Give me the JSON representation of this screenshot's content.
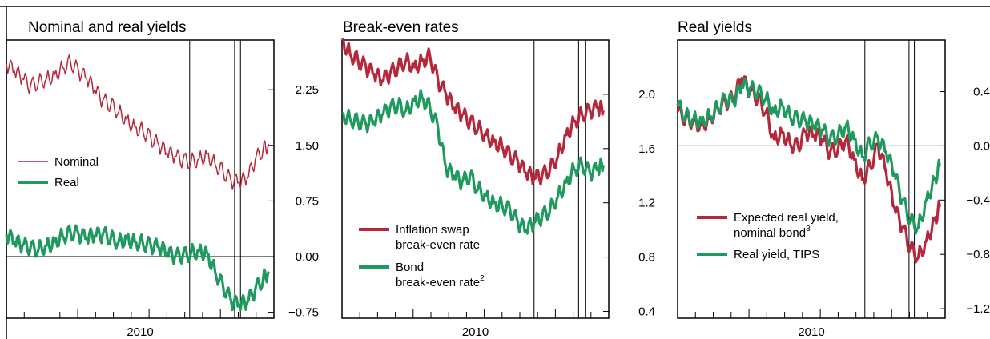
{
  "chart_data": [
    {
      "type": "line",
      "title": "Nominal and real yields",
      "xlabel": "2010",
      "y_ticks": [
        "2.25",
        "1.50",
        "0.75",
        "0.00",
        "−0.75"
      ],
      "y_tick_values": [
        2.25,
        1.5,
        0.75,
        0.0,
        -0.75
      ],
      "ylim": [
        -0.83,
        2.92
      ],
      "xlim": [
        0,
        1
      ],
      "event_lines_x": [
        0.685,
        0.853,
        0.875
      ],
      "x_minor_ticks": 14,
      "legend": [
        "Nominal",
        "Real"
      ],
      "series": [
        {
          "name": "Nominal",
          "color": "#b5273a",
          "x": [
            0,
            0.03,
            0.06,
            0.09,
            0.12,
            0.15,
            0.18,
            0.21,
            0.24,
            0.27,
            0.3,
            0.33,
            0.36,
            0.39,
            0.42,
            0.45,
            0.48,
            0.51,
            0.54,
            0.57,
            0.6,
            0.63,
            0.66,
            0.69,
            0.72,
            0.75,
            0.78,
            0.81,
            0.84,
            0.87,
            0.9,
            0.93,
            0.96,
            0.98
          ],
          "values": [
            2.6,
            2.5,
            2.4,
            2.3,
            2.35,
            2.4,
            2.45,
            2.55,
            2.62,
            2.5,
            2.4,
            2.25,
            2.1,
            2.05,
            1.95,
            1.85,
            1.75,
            1.7,
            1.6,
            1.5,
            1.4,
            1.35,
            1.3,
            1.28,
            1.32,
            1.38,
            1.25,
            1.15,
            1.02,
            1.0,
            1.05,
            1.3,
            1.45,
            1.52
          ]
        },
        {
          "name": "Real",
          "color": "#1e9a5e",
          "x": [
            0,
            0.03,
            0.06,
            0.09,
            0.12,
            0.15,
            0.18,
            0.21,
            0.24,
            0.27,
            0.3,
            0.33,
            0.36,
            0.39,
            0.42,
            0.45,
            0.48,
            0.51,
            0.54,
            0.57,
            0.6,
            0.63,
            0.66,
            0.69,
            0.72,
            0.75,
            0.78,
            0.81,
            0.84,
            0.87,
            0.9,
            0.93,
            0.96,
            0.98
          ],
          "values": [
            0.3,
            0.2,
            0.15,
            0.12,
            0.1,
            0.15,
            0.2,
            0.28,
            0.32,
            0.3,
            0.25,
            0.28,
            0.3,
            0.25,
            0.2,
            0.25,
            0.2,
            0.18,
            0.15,
            0.12,
            0.05,
            0.0,
            0.02,
            0.05,
            0.08,
            0.05,
            -0.2,
            -0.4,
            -0.6,
            -0.65,
            -0.62,
            -0.45,
            -0.3,
            -0.2
          ]
        }
      ]
    },
    {
      "type": "line",
      "title": "Break-even rates",
      "xlabel": "2010",
      "y_ticks": [
        "2.0",
        "1.6",
        "1.2",
        "0.8",
        "0.4"
      ],
      "y_tick_values": [
        2.0,
        1.6,
        1.2,
        0.8,
        0.4
      ],
      "ylim": [
        0.35,
        2.4
      ],
      "xlim": [
        0,
        1
      ],
      "event_lines_x": [
        0.72,
        0.887,
        0.912
      ],
      "x_minor_ticks": 14,
      "legend": [
        "Inflation swap break-even rate",
        "Bond break-even rate"
      ],
      "series": [
        {
          "name": "Inflation swap break-even rate",
          "color": "#b5273a",
          "x": [
            0,
            0.03,
            0.06,
            0.09,
            0.12,
            0.15,
            0.18,
            0.21,
            0.24,
            0.27,
            0.3,
            0.33,
            0.36,
            0.39,
            0.42,
            0.45,
            0.48,
            0.51,
            0.54,
            0.57,
            0.6,
            0.63,
            0.66,
            0.69,
            0.72,
            0.75,
            0.78,
            0.81,
            0.84,
            0.87,
            0.9,
            0.93,
            0.96,
            0.98
          ],
          "values": [
            2.4,
            2.3,
            2.25,
            2.2,
            2.15,
            2.1,
            2.15,
            2.2,
            2.25,
            2.2,
            2.25,
            2.28,
            2.1,
            2.0,
            1.9,
            1.85,
            1.8,
            1.75,
            1.7,
            1.65,
            1.62,
            1.55,
            1.5,
            1.42,
            1.38,
            1.4,
            1.45,
            1.55,
            1.7,
            1.8,
            1.85,
            1.88,
            1.9,
            1.88
          ]
        },
        {
          "name": "Bond break-even rate",
          "color": "#1e9a5e",
          "x": [
            0,
            0.03,
            0.06,
            0.09,
            0.12,
            0.15,
            0.18,
            0.21,
            0.24,
            0.27,
            0.3,
            0.33,
            0.36,
            0.39,
            0.42,
            0.45,
            0.48,
            0.51,
            0.54,
            0.57,
            0.6,
            0.63,
            0.66,
            0.69,
            0.72,
            0.75,
            0.78,
            0.81,
            0.84,
            0.87,
            0.9,
            0.93,
            0.96,
            0.98
          ],
          "values": [
            1.85,
            1.82,
            1.8,
            1.78,
            1.8,
            1.85,
            1.9,
            1.92,
            1.88,
            1.95,
            1.98,
            1.9,
            1.75,
            1.45,
            1.4,
            1.35,
            1.4,
            1.3,
            1.25,
            1.2,
            1.18,
            1.15,
            1.05,
            1.0,
            1.05,
            1.1,
            1.15,
            1.25,
            1.35,
            1.45,
            1.48,
            1.42,
            1.45,
            1.48
          ]
        }
      ]
    },
    {
      "type": "line",
      "title": "Real yields",
      "xlabel": "2010",
      "y_ticks": [
        "0.4",
        "0.0",
        "−0.4",
        "−0.8",
        "−1.2"
      ],
      "y_tick_values": [
        0.4,
        0.0,
        -0.4,
        -0.8,
        -1.2
      ],
      "ylim": [
        -1.27,
        0.78
      ],
      "xlim": [
        0,
        1
      ],
      "event_lines_x": [
        0.7,
        0.865,
        0.885
      ],
      "x_minor_ticks": 14,
      "legend": [
        "Expected real yield, nominal bond",
        "Real yield, TIPS"
      ],
      "series": [
        {
          "name": "Expected real yield, nominal bond",
          "color": "#b5273a",
          "x": [
            0,
            0.03,
            0.06,
            0.09,
            0.12,
            0.15,
            0.18,
            0.21,
            0.24,
            0.27,
            0.3,
            0.33,
            0.36,
            0.39,
            0.42,
            0.45,
            0.48,
            0.51,
            0.54,
            0.57,
            0.6,
            0.63,
            0.66,
            0.69,
            0.72,
            0.75,
            0.78,
            0.81,
            0.84,
            0.87,
            0.9,
            0.93,
            0.96,
            0.98
          ],
          "values": [
            0.25,
            0.2,
            0.18,
            0.15,
            0.2,
            0.28,
            0.32,
            0.35,
            0.5,
            0.4,
            0.35,
            0.25,
            0.05,
            0.1,
            0.02,
            0.0,
            0.1,
            0.08,
            0.05,
            -0.05,
            -0.02,
            0.05,
            -0.1,
            -0.25,
            -0.15,
            0.0,
            -0.2,
            -0.45,
            -0.6,
            -0.75,
            -0.82,
            -0.7,
            -0.55,
            -0.45
          ]
        },
        {
          "name": "Real yield, TIPS",
          "color": "#1e9a5e",
          "x": [
            0,
            0.03,
            0.06,
            0.09,
            0.12,
            0.15,
            0.18,
            0.21,
            0.24,
            0.27,
            0.3,
            0.33,
            0.36,
            0.39,
            0.42,
            0.45,
            0.48,
            0.51,
            0.54,
            0.57,
            0.6,
            0.63,
            0.66,
            0.69,
            0.72,
            0.75,
            0.78,
            0.81,
            0.84,
            0.87,
            0.9,
            0.93,
            0.96,
            0.98
          ],
          "values": [
            0.3,
            0.22,
            0.2,
            0.18,
            0.22,
            0.28,
            0.35,
            0.32,
            0.45,
            0.42,
            0.4,
            0.35,
            0.25,
            0.3,
            0.22,
            0.2,
            0.18,
            0.15,
            0.12,
            0.05,
            0.08,
            0.15,
            0.05,
            -0.08,
            0.02,
            0.05,
            -0.05,
            -0.2,
            -0.4,
            -0.55,
            -0.6,
            -0.4,
            -0.25,
            -0.15
          ]
        }
      ]
    }
  ]
}
